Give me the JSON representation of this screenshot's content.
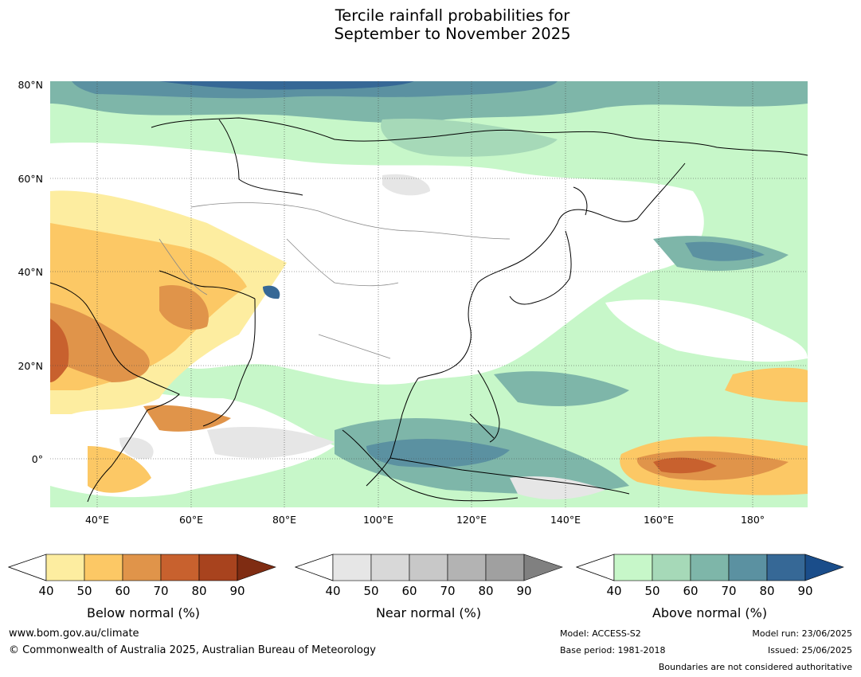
{
  "title": {
    "line1": "Tercile rainfall probabilities for",
    "line2": "September to November 2025"
  },
  "lat_labels": [
    "80°N",
    "60°N",
    "40°N",
    "20°N",
    "0°"
  ],
  "lon_labels": [
    "40°E",
    "60°E",
    "80°E",
    "100°E",
    "120°E",
    "140°E",
    "160°E",
    "180°"
  ],
  "colorbars": [
    {
      "title": "Below normal (%)",
      "ticks": [
        "40",
        "50",
        "60",
        "70",
        "80",
        "90"
      ],
      "colors": [
        "#fdeda0",
        "#fcc865",
        "#e0944a",
        "#c8612e",
        "#a8431e",
        "#7f2c12"
      ]
    },
    {
      "title": "Near normal (%)",
      "ticks": [
        "40",
        "50",
        "60",
        "70",
        "80",
        "90"
      ],
      "colors": [
        "#e6e6e6",
        "#d8d8d8",
        "#c8c8c8",
        "#b3b3b3",
        "#a0a0a0",
        "#808080"
      ]
    },
    {
      "title": "Above normal (%)",
      "ticks": [
        "40",
        "50",
        "60",
        "70",
        "80",
        "90"
      ],
      "colors": [
        "#c7f7c9",
        "#a6d9b8",
        "#7eb6a9",
        "#5b91a1",
        "#366896",
        "#1a4d8a"
      ]
    }
  ],
  "footer": {
    "website": "www.bom.gov.au/climate",
    "copyright": "© Commonwealth of Australia 2025, Australian Bureau of Meteorology",
    "model": "Model: ACCESS-S2",
    "base_period": "Base period: 1981-2018",
    "model_run": "Model run: 23/06/2025",
    "issued": "Issued: 25/06/2025",
    "disclaimer": "Boundaries are not considered authoritative"
  },
  "colors": {
    "sea_green": "#c7f7c9",
    "white": "#ffffff"
  }
}
